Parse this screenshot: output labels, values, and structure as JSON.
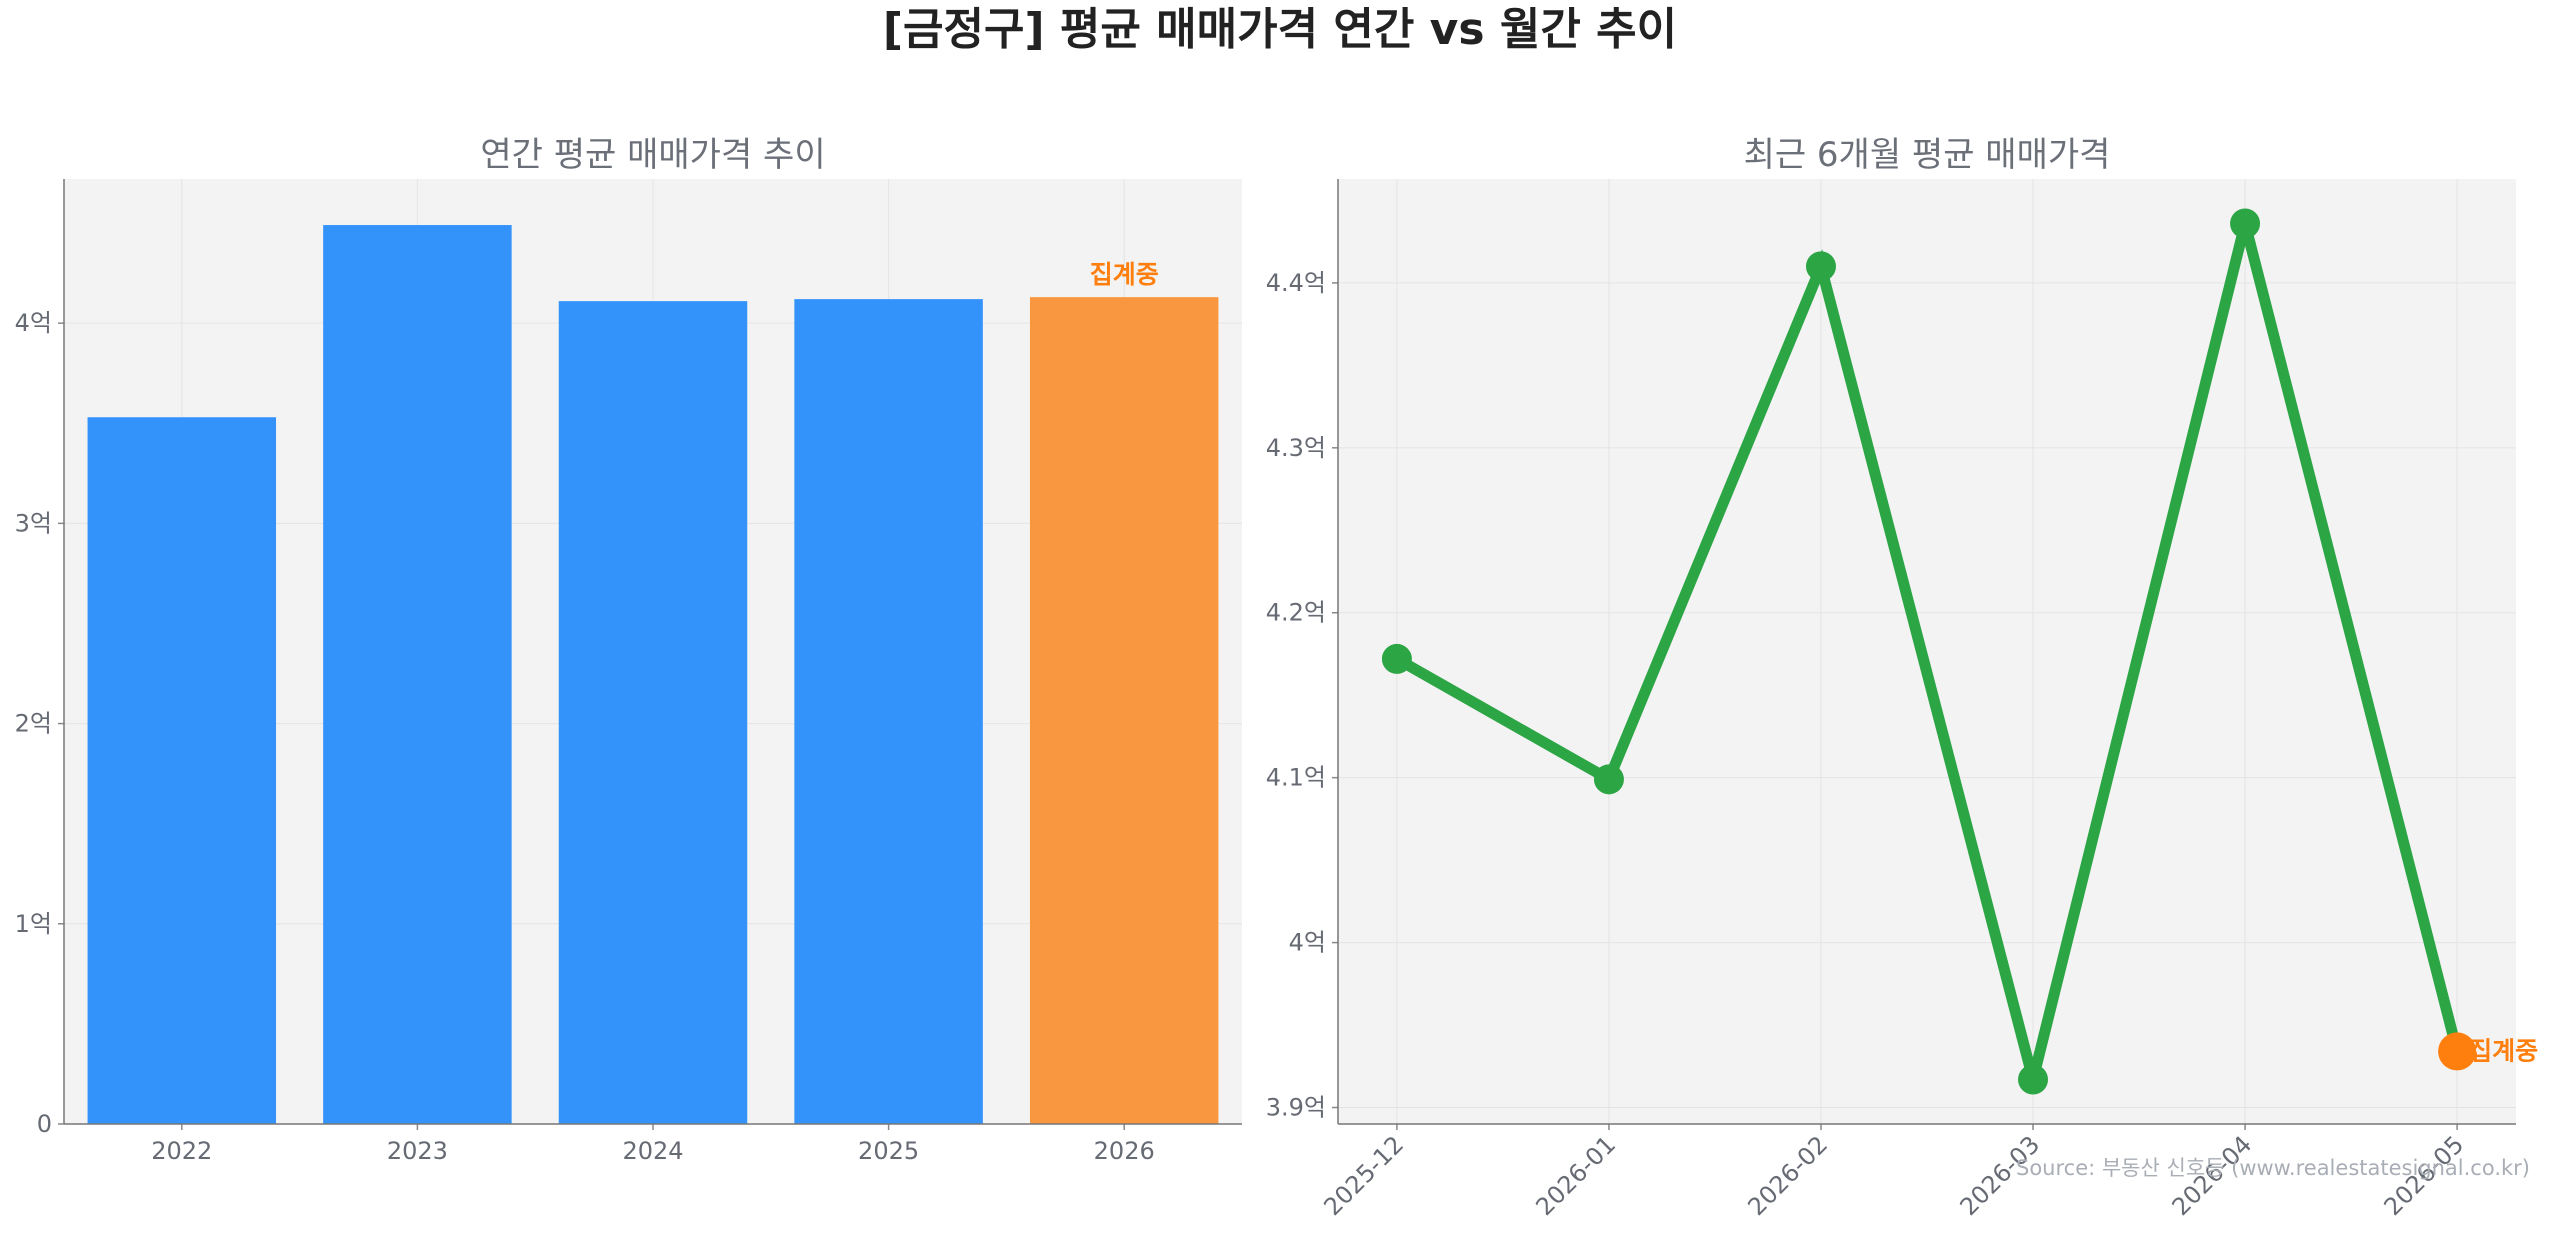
{
  "title": "[금정구] 평균 매매가격 연간 vs 월간 추이",
  "source_note": "Source: 부동산 신호등 (www.realestatesignal.co.kr)",
  "colors": {
    "bar": "#3393fb",
    "bar_current": "#f99740",
    "line": "#2ca545",
    "marker_current": "#ff7f0e",
    "panel_bg": "#f3f3f3",
    "grid": "#e4e4e4"
  },
  "chart_data": [
    {
      "type": "bar",
      "title": "연간 평균 매매가격 추이",
      "categories": [
        "2022",
        "2023",
        "2024",
        "2025",
        "2026"
      ],
      "values": [
        3.53,
        4.49,
        4.11,
        4.12,
        4.13
      ],
      "ylim": [
        0,
        4.72
      ],
      "yticks": [
        0,
        1,
        2,
        3,
        4
      ],
      "ytick_labels": [
        "0",
        "1억",
        "2억",
        "3억",
        "4억"
      ],
      "annotation": {
        "category": "2026",
        "text": "집계중"
      },
      "grid": true
    },
    {
      "type": "line",
      "title": "최근 6개월 평균 매매가격",
      "x": [
        "2025-12",
        "2026-01",
        "2026-02",
        "2026-03",
        "2026-04",
        "2026-05"
      ],
      "values": [
        4.172,
        4.099,
        4.41,
        3.917,
        4.436,
        3.934
      ],
      "ylim": [
        3.89,
        4.463
      ],
      "yticks": [
        3.9,
        4.0,
        4.1,
        4.2,
        4.3,
        4.4
      ],
      "ytick_labels": [
        "3.9억",
        "4억",
        "4.1억",
        "4.2억",
        "4.3억",
        "4.4억"
      ],
      "annotation": {
        "x": "2026-05",
        "text": "집계중"
      },
      "grid": true
    }
  ]
}
